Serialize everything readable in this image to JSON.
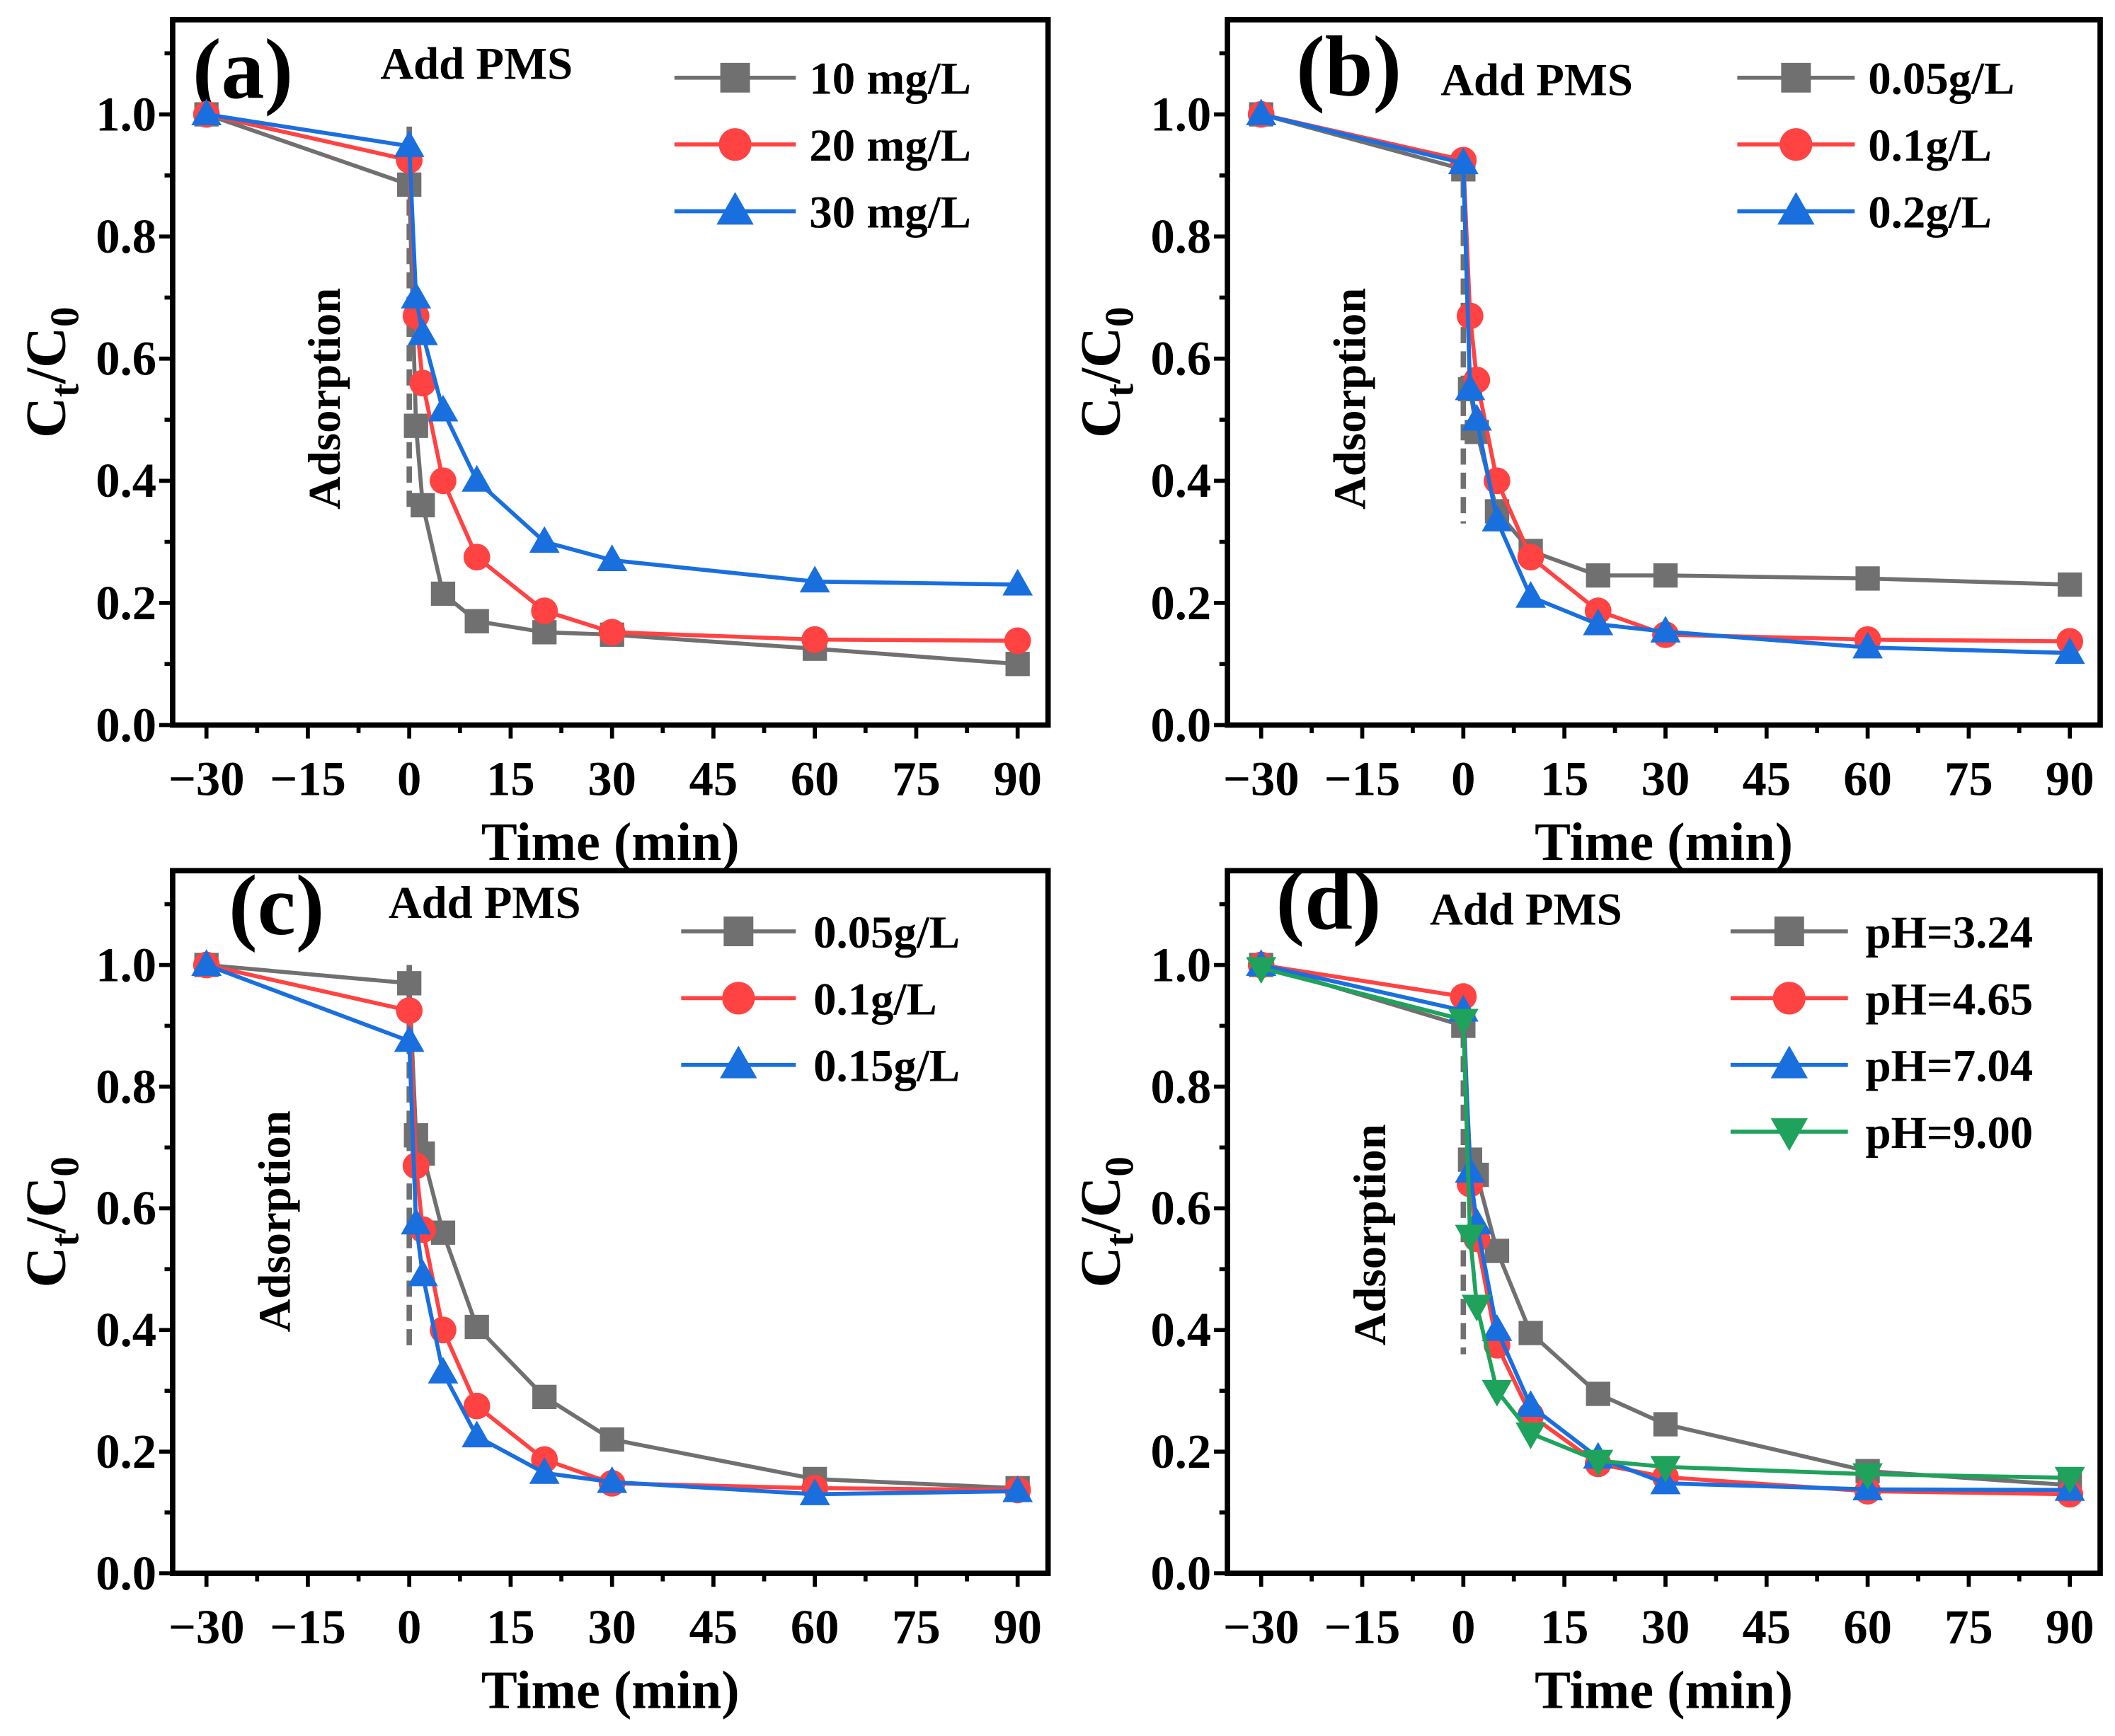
{
  "colors": {
    "gray": "#707070",
    "red": "#ff4242",
    "blue": "#1a6fdf",
    "green": "#1fa35c",
    "axis": "#000000"
  },
  "chart_data": [
    {
      "type": "line",
      "panel_label": "(a)",
      "xlabel": "Time (min)",
      "ylabel_main": "C",
      "ylabel_sub1": "t",
      "ylabel_mid": "/C",
      "ylabel_sub2": "0",
      "annotation_top": "Add PMS",
      "annotation_side": "Adsorption",
      "xlim": [
        -35,
        94.5
      ],
      "ylim": [
        0,
        1.155
      ],
      "xticks": [
        -30,
        -15,
        0,
        15,
        30,
        45,
        60,
        75,
        90
      ],
      "xtick_labels": [
        "−30",
        "−15",
        "0",
        "15",
        "30",
        "45",
        "60",
        "75",
        "90"
      ],
      "yticks": [
        0,
        0.2,
        0.4,
        0.6,
        0.8,
        1.0
      ],
      "ytick_labels": [
        "0.0",
        "0.2",
        "0.4",
        "0.6",
        "0.8",
        "1.0"
      ],
      "x": [
        -30,
        0,
        1,
        2,
        5,
        10,
        20,
        30,
        60,
        90
      ],
      "series": [
        {
          "name": "10 mg/L",
          "color": "gray",
          "marker": "square",
          "values": [
            1.0,
            0.885,
            0.49,
            0.36,
            0.215,
            0.17,
            0.152,
            0.148,
            0.125,
            0.1
          ]
        },
        {
          "name": "20 mg/L",
          "color": "red",
          "marker": "circle",
          "values": [
            1.0,
            0.925,
            0.67,
            0.56,
            0.4,
            0.275,
            0.187,
            0.152,
            0.14,
            0.138
          ]
        },
        {
          "name": "30 mg/L",
          "color": "blue",
          "marker": "triangle",
          "values": [
            1.0,
            0.948,
            0.7,
            0.64,
            0.515,
            0.4,
            0.3,
            0.27,
            0.235,
            0.23
          ]
        }
      ]
    },
    {
      "type": "line",
      "panel_label": "(b)",
      "xlabel": "Time (min)",
      "ylabel_main": "C",
      "ylabel_sub1": "t",
      "ylabel_mid": "/C",
      "ylabel_sub2": "0",
      "annotation_top": "Add PMS",
      "annotation_side": "Adsorption",
      "xlim": [
        -35,
        94.5
      ],
      "ylim": [
        0,
        1.155
      ],
      "xticks": [
        -30,
        -15,
        0,
        15,
        30,
        45,
        60,
        75,
        90
      ],
      "xtick_labels": [
        "−30",
        "−15",
        "0",
        "15",
        "30",
        "45",
        "60",
        "75",
        "90"
      ],
      "yticks": [
        0,
        0.2,
        0.4,
        0.6,
        0.8,
        1.0
      ],
      "ytick_labels": [
        "0.0",
        "0.2",
        "0.4",
        "0.6",
        "0.8",
        "1.0"
      ],
      "x": [
        -30,
        0,
        1,
        2,
        5,
        10,
        20,
        30,
        60,
        90
      ],
      "series": [
        {
          "name": "0.05g/L",
          "color": "gray",
          "marker": "square",
          "values": [
            1.0,
            0.91,
            0.55,
            0.48,
            0.35,
            0.285,
            0.245,
            0.245,
            0.24,
            0.23
          ]
        },
        {
          "name": "0.1g/L",
          "color": "red",
          "marker": "circle",
          "values": [
            1.0,
            0.925,
            0.67,
            0.565,
            0.4,
            0.275,
            0.187,
            0.148,
            0.14,
            0.137
          ]
        },
        {
          "name": "0.2g/L",
          "color": "blue",
          "marker": "triangle",
          "values": [
            1.0,
            0.92,
            0.55,
            0.5,
            0.335,
            0.21,
            0.165,
            0.153,
            0.127,
            0.118
          ]
        }
      ]
    },
    {
      "type": "line",
      "panel_label": "(c)",
      "xlabel": "Time (min)",
      "ylabel_main": "C",
      "ylabel_sub1": "t",
      "ylabel_mid": "/C",
      "ylabel_sub2": "0",
      "annotation_top": "Add PMS",
      "annotation_side": "Adsorption",
      "xlim": [
        -35,
        94.5
      ],
      "ylim": [
        0,
        1.155
      ],
      "xticks": [
        -30,
        -15,
        0,
        15,
        30,
        45,
        60,
        75,
        90
      ],
      "xtick_labels": [
        "−30",
        "−15",
        "0",
        "15",
        "30",
        "45",
        "60",
        "75",
        "90"
      ],
      "yticks": [
        0,
        0.2,
        0.4,
        0.6,
        0.8,
        1.0
      ],
      "ytick_labels": [
        "0.0",
        "0.2",
        "0.4",
        "0.6",
        "0.8",
        "1.0"
      ],
      "x": [
        -30,
        0,
        1,
        2,
        5,
        10,
        20,
        30,
        60,
        90
      ],
      "series": [
        {
          "name": "0.05g/L",
          "color": "gray",
          "marker": "square",
          "values": [
            1.0,
            0.97,
            0.72,
            0.69,
            0.56,
            0.405,
            0.29,
            0.22,
            0.155,
            0.14
          ]
        },
        {
          "name": "0.1g/L",
          "color": "red",
          "marker": "circle",
          "values": [
            1.0,
            0.925,
            0.67,
            0.565,
            0.4,
            0.275,
            0.187,
            0.148,
            0.14,
            0.137
          ]
        },
        {
          "name": "0.15g/L",
          "color": "blue",
          "marker": "triangle",
          "values": [
            1.0,
            0.875,
            0.575,
            0.49,
            0.33,
            0.225,
            0.165,
            0.15,
            0.13,
            0.135
          ]
        }
      ]
    },
    {
      "type": "line",
      "panel_label": "(d)",
      "xlabel": "Time (min)",
      "ylabel_main": "C",
      "ylabel_sub1": "t",
      "ylabel_mid": "/C",
      "ylabel_sub2": "0",
      "annotation_top": "Add PMS",
      "annotation_side": "Adsorption",
      "xlim": [
        -35,
        94.5
      ],
      "ylim": [
        0,
        1.155
      ],
      "xticks": [
        -30,
        -15,
        0,
        15,
        30,
        45,
        60,
        75,
        90
      ],
      "xtick_labels": [
        "−30",
        "−15",
        "0",
        "15",
        "30",
        "45",
        "60",
        "75",
        "90"
      ],
      "yticks": [
        0,
        0.2,
        0.4,
        0.6,
        0.8,
        1.0
      ],
      "ytick_labels": [
        "0.0",
        "0.2",
        "0.4",
        "0.6",
        "0.8",
        "1.0"
      ],
      "x": [
        -30,
        0,
        1,
        2,
        5,
        10,
        20,
        30,
        60,
        90
      ],
      "series": [
        {
          "name": "pH=3.24",
          "color": "gray",
          "marker": "square",
          "values": [
            1.0,
            0.9,
            0.68,
            0.655,
            0.53,
            0.395,
            0.295,
            0.245,
            0.168,
            0.145
          ]
        },
        {
          "name": "pH=4.65",
          "color": "red",
          "marker": "circle",
          "values": [
            1.0,
            0.948,
            0.64,
            0.55,
            0.375,
            0.26,
            0.18,
            0.158,
            0.135,
            0.13
          ]
        },
        {
          "name": "pH=7.04",
          "color": "blue",
          "marker": "triangle",
          "values": [
            1.0,
            0.925,
            0.66,
            0.575,
            0.4,
            0.275,
            0.19,
            0.148,
            0.138,
            0.137
          ]
        },
        {
          "name": "pH=9.00",
          "color": "green",
          "marker": "triangle-down",
          "values": [
            0.995,
            0.91,
            0.555,
            0.44,
            0.3,
            0.23,
            0.185,
            0.175,
            0.163,
            0.157
          ]
        }
      ]
    }
  ]
}
